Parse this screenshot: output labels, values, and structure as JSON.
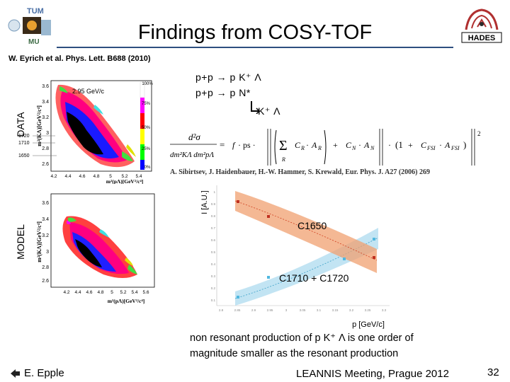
{
  "header": {
    "title": "Findings from COSY-TOF",
    "logo_left_top": "TUM",
    "logo_left_bottom": "MU",
    "logo_right": "HADES"
  },
  "citation": "W. Eyrich et al. Phys. Lett. B688 (2010)",
  "data_plot": {
    "side_label": "DATA",
    "beam_label": "2.95 GeV/c",
    "y_axis_label": "m²(KΛ)[GeV²/c⁴]",
    "x_axis_label": "m²(pΛ)[GeV²/c⁴]",
    "y_ticks": [
      "3.6",
      "3.4",
      "3.2",
      "3",
      "2.8",
      "2.6"
    ],
    "x_ticks": [
      "4.2",
      "4.4",
      "4.6",
      "4.8",
      "5",
      "5.2",
      "5.4"
    ],
    "resonance_labels": [
      "1720",
      "1710",
      "1650"
    ],
    "scale_labels": [
      "100%",
      "75%",
      "50%",
      "25%",
      "0%"
    ]
  },
  "model_plot": {
    "side_label": "MODEL",
    "y_axis_label": "m²(KΛ)[GeV²/c⁴]",
    "x_axis_label": "m²(pΛ)[GeV²/c⁴]",
    "y_ticks": [
      "3.6",
      "3.4",
      "3.2",
      "3",
      "2.8",
      "2.6"
    ],
    "x_ticks": [
      "4.2",
      "4.4",
      "4.6",
      "4.8",
      "5",
      "5.2",
      "5.4",
      "5.6"
    ]
  },
  "reactions": {
    "line1": "p+p → p K⁺ Λ",
    "line2": "p+p → p N*",
    "line3": "K⁺ Λ"
  },
  "formula_reference": "A. Sibirtsev, J. Haidenbauer, H.-W. Hammer, S. Krewald, Eur. Phys. J. A27 (2006) 269",
  "xsec_plot": {
    "y_label": "I [A.U.]",
    "x_label": "p [GeV/c]",
    "curve_upper": "C1650",
    "curve_lower": "C1710 + C1720",
    "x_ticks": [
      "2.8",
      "2.85",
      "2.9",
      "2.95",
      "3",
      "3.05",
      "3.1",
      "3.15",
      "3.2",
      "3.25",
      "3.3"
    ],
    "y_ticks": [
      "0.1",
      "0.2",
      "0.3",
      "0.4",
      "0.5",
      "0.6",
      "0.7",
      "0.8",
      "0.9",
      "1"
    ]
  },
  "bottom_text": {
    "line1": "non resonant production of p K⁺ Λ is one order of",
    "line2": "magnitude smaller as the resonant production"
  },
  "footer": {
    "author": "E. Epple",
    "meeting": "LEANNIS Meeting, Prague 2012",
    "page": "32"
  }
}
